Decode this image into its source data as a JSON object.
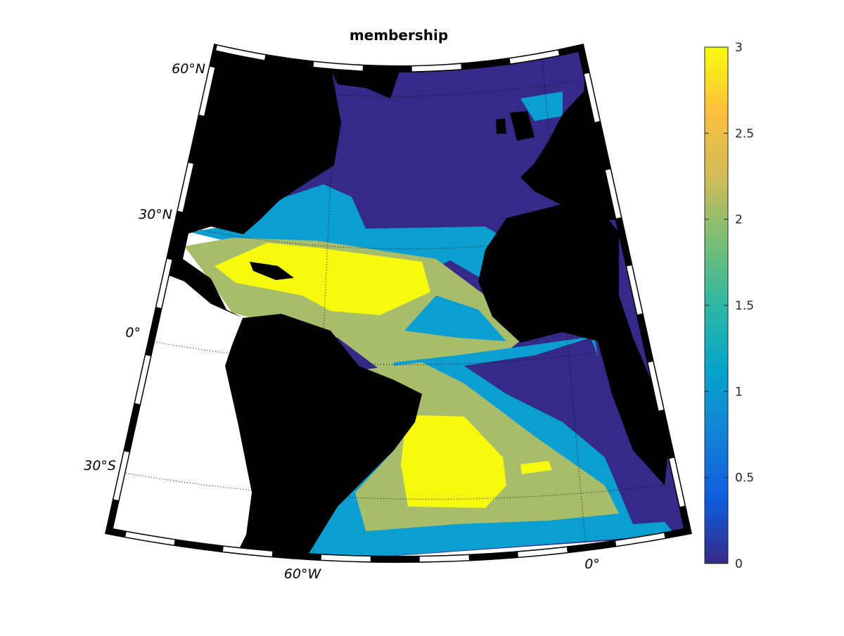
{
  "title": "membership",
  "map": {
    "classes": [
      {
        "value": 0,
        "color": "#352a87"
      },
      {
        "value": 1,
        "color": "#0a9fd0"
      },
      {
        "value": 2,
        "color": "#a8bd6b"
      },
      {
        "value": 3,
        "color": "#f8fa0d"
      }
    ],
    "land_color": "#000000",
    "missing_color": "#ffffff",
    "parallel_labels": [
      "60°N",
      "30°N",
      "0°",
      "30°S"
    ],
    "meridian_labels": [
      "60°W",
      "0°"
    ]
  },
  "colorbar": {
    "lim": [
      0,
      3
    ],
    "ticks": [
      0,
      0.5,
      1,
      1.5,
      2,
      2.5,
      3
    ],
    "colormap": [
      "#352a87",
      "#0f5cdd",
      "#1481d6",
      "#06a4ca",
      "#2eb7a4",
      "#7abf75",
      "#d1bb59",
      "#fcbf3c",
      "#f9fb0e"
    ]
  }
}
